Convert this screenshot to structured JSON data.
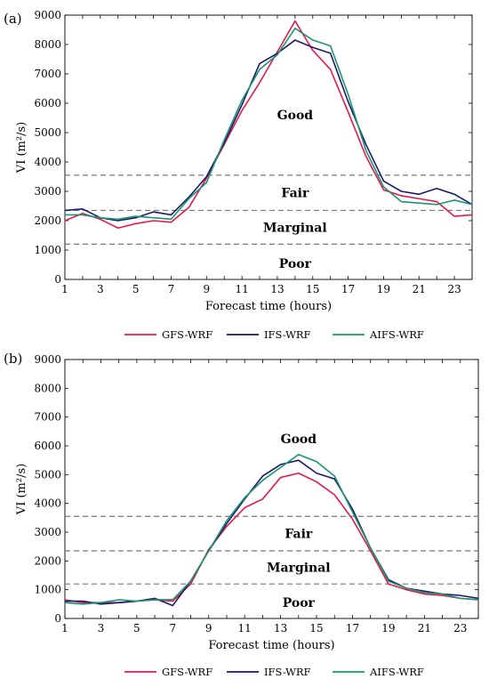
{
  "chart_data": [
    {
      "panel_label": "(a)",
      "type": "line",
      "xlabel": "Forecast time (hours)",
      "ylabel": "VI (m²/s)",
      "xlim": [
        1,
        24
      ],
      "ylim": [
        0,
        9000
      ],
      "x_ticks": [
        "1",
        "3",
        "5",
        "7",
        "9",
        "11",
        "13",
        "15",
        "17",
        "19",
        "21",
        "23"
      ],
      "y_ticks": [
        "0",
        "1000",
        "2000",
        "3000",
        "4000",
        "5000",
        "6000",
        "7000",
        "8000",
        "9000"
      ],
      "thresholds": [
        1200,
        2350,
        3550
      ],
      "zones": [
        {
          "label": "Good",
          "y": 5600
        },
        {
          "label": "Fair",
          "y": 2950
        },
        {
          "label": "Marginal",
          "y": 1780
        },
        {
          "label": "Poor",
          "y": 550
        }
      ],
      "x": [
        1,
        2,
        3,
        4,
        5,
        6,
        7,
        8,
        9,
        10,
        11,
        12,
        13,
        14,
        15,
        16,
        17,
        18,
        19,
        20,
        21,
        22,
        23,
        24
      ],
      "series": [
        {
          "name": "GFS-WRF",
          "color": "#e6194b",
          "values": [
            2000,
            2250,
            2050,
            1750,
            1900,
            2000,
            1950,
            2450,
            3450,
            4600,
            5750,
            6700,
            7750,
            8800,
            7800,
            7150,
            5700,
            4200,
            3050,
            2850,
            2750,
            2650,
            2150,
            2200
          ]
        },
        {
          "name": "IFS-WRF",
          "color": "#1a1a6e",
          "values": [
            2350,
            2400,
            2100,
            2000,
            2100,
            2300,
            2200,
            2800,
            3500,
            4650,
            5950,
            7350,
            7700,
            8150,
            7900,
            7700,
            6050,
            4600,
            3350,
            3000,
            2900,
            3100,
            2900,
            2550
          ]
        },
        {
          "name": "AIFS-WRF",
          "color": "#1a9670",
          "values": [
            2200,
            2200,
            2100,
            2050,
            2150,
            2100,
            2050,
            2750,
            3300,
            4750,
            6100,
            7150,
            7650,
            8550,
            8150,
            7950,
            6300,
            4400,
            3150,
            2650,
            2600,
            2550,
            2700,
            2550
          ]
        }
      ],
      "legend": [
        "GFS-WRF",
        "IFS-WRF",
        "AIFS-WRF"
      ],
      "grid": false
    },
    {
      "panel_label": "(b)",
      "type": "line",
      "xlabel": "Forecast time (hours)",
      "ylabel": "VI (m²/s)",
      "xlim": [
        1,
        24
      ],
      "ylim": [
        0,
        9000
      ],
      "x_ticks": [
        "1",
        "3",
        "5",
        "7",
        "9",
        "11",
        "13",
        "15",
        "17",
        "19",
        "21",
        "23"
      ],
      "y_ticks": [
        "0",
        "1000",
        "2000",
        "3000",
        "4000",
        "5000",
        "6000",
        "7000",
        "8000",
        "9000"
      ],
      "thresholds": [
        1200,
        2350,
        3550
      ],
      "zones": [
        {
          "label": "Good",
          "y": 6250
        },
        {
          "label": "Fair",
          "y": 2950
        },
        {
          "label": "Marginal",
          "y": 1780
        },
        {
          "label": "Poor",
          "y": 550
        }
      ],
      "x": [
        1,
        2,
        3,
        4,
        5,
        6,
        7,
        8,
        9,
        10,
        11,
        12,
        13,
        14,
        15,
        16,
        17,
        18,
        19,
        20,
        21,
        22,
        23,
        24
      ],
      "series": [
        {
          "name": "GFS-WRF",
          "color": "#e6194b",
          "values": [
            650,
            550,
            550,
            550,
            600,
            650,
            600,
            1200,
            2400,
            3200,
            3850,
            4150,
            4900,
            5050,
            4750,
            4300,
            3450,
            2350,
            1200,
            1000,
            850,
            800,
            700,
            650
          ]
        },
        {
          "name": "IFS-WRF",
          "color": "#1a1a6e",
          "values": [
            600,
            600,
            500,
            550,
            600,
            700,
            450,
            1300,
            2350,
            3300,
            4150,
            4950,
            5350,
            5500,
            5050,
            4850,
            3800,
            2450,
            1350,
            1050,
            950,
            850,
            800,
            700
          ]
        },
        {
          "name": "AIFS-WRF",
          "color": "#1a9670",
          "values": [
            550,
            500,
            550,
            650,
            600,
            650,
            650,
            1300,
            2350,
            3400,
            4200,
            4800,
            5250,
            5700,
            5450,
            4950,
            3700,
            2450,
            1300,
            1050,
            900,
            850,
            700,
            650
          ]
        }
      ],
      "legend": [
        "GFS-WRF",
        "IFS-WRF",
        "AIFS-WRF"
      ],
      "grid": false
    }
  ]
}
